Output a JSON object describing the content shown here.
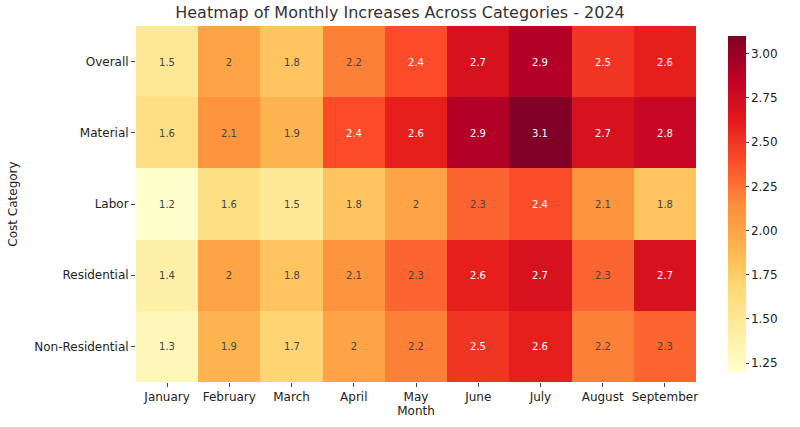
{
  "chart_data": {
    "type": "heatmap",
    "title": "Heatmap of Monthly Increases Across Categories - 2024",
    "x_label": "Month",
    "y_label": "Cost Category",
    "categories": [
      "January",
      "February",
      "March",
      "April",
      "May",
      "June",
      "July",
      "August",
      "September"
    ],
    "rows": [
      "Overall",
      "Material",
      "Labor",
      "Residential",
      "Non-Residential"
    ],
    "cells": [
      [
        1.5,
        2,
        1.8,
        2.2,
        2.4,
        2.7,
        2.9,
        2.5,
        2.6
      ],
      [
        1.6,
        2.1,
        1.9,
        2.4,
        2.6,
        2.9,
        3.1,
        2.7,
        2.8
      ],
      [
        1.2,
        1.6,
        1.5,
        1.8,
        2,
        2.3,
        2.4,
        2.1,
        1.8
      ],
      [
        1.4,
        2,
        1.8,
        2.1,
        2.3,
        2.6,
        2.7,
        2.3,
        2.7
      ],
      [
        1.3,
        1.9,
        1.7,
        2,
        2.2,
        2.5,
        2.6,
        2.2,
        2.3
      ]
    ],
    "data_labels": true,
    "colorbar_range": [
      1.2,
      3.1
    ],
    "colorbar_ticks": [
      1.25,
      {
        "value": 1.5,
        "label": "1.50"
      },
      1.75,
      {
        "value": 2.0,
        "label": "2.00"
      },
      2.25,
      {
        "value": 2.5,
        "label": "2.50"
      },
      2.75,
      {
        "value": 3.0,
        "label": "3.00"
      }
    ]
  }
}
